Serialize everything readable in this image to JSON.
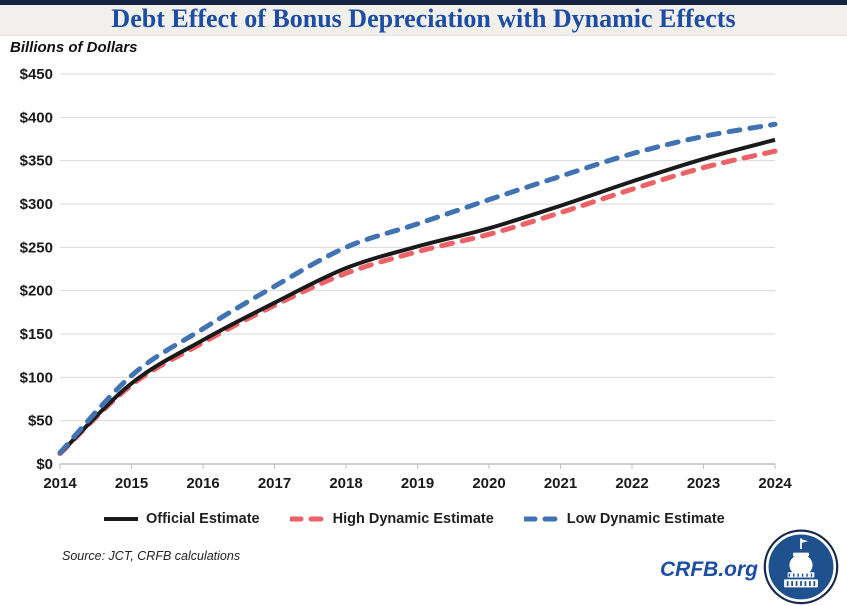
{
  "header": {
    "title": "Debt Effect of Bonus Depreciation with Dynamic Effects"
  },
  "chart_data": {
    "type": "line",
    "title": "Debt Effect of Bonus Depreciation with Dynamic Effects",
    "unit_label": "Billions of Dollars",
    "x": [
      2014,
      2015,
      2016,
      2017,
      2018,
      2019,
      2020,
      2021,
      2022,
      2023,
      2024
    ],
    "series": [
      {
        "name": "Official Estimate",
        "color": "#1a1a1a",
        "style": "solid",
        "values": [
          12,
          93,
          143,
          186,
          226,
          251,
          272,
          298,
          326,
          352,
          374
        ]
      },
      {
        "name": "High Dynamic Estimate",
        "color": "#ec6266",
        "style": "dashed",
        "values": [
          12,
          91,
          140,
          183,
          220,
          245,
          265,
          290,
          317,
          342,
          361
        ]
      },
      {
        "name": "Low Dynamic Estimate",
        "color": "#4173b3",
        "style": "dashed",
        "values": [
          13,
          102,
          156,
          205,
          250,
          277,
          305,
          332,
          358,
          378,
          392
        ]
      }
    ],
    "ylim": [
      0,
      450
    ],
    "y_tick_step": 50,
    "y_tick_labels": [
      "$450",
      "$400",
      "$350",
      "$300",
      "$250",
      "$200",
      "$150",
      "$100",
      "$50",
      "$0"
    ],
    "x_tick_labels": [
      "2014",
      "2015",
      "2016",
      "2017",
      "2018",
      "2019",
      "2020",
      "2021",
      "2022",
      "2023",
      "2024"
    ],
    "grid": true,
    "legend_position": "bottom"
  },
  "footer": {
    "source": "Source: JCT, CRFB calculations",
    "site": "CRFB.org"
  },
  "colors": {
    "title_blue": "#1d4da5",
    "top_bar_navy": "#15233f",
    "grid_gray": "#d9d9d9",
    "axis_gray": "#bfbfbf",
    "logo_navy": "#16294d",
    "logo_blue": "#1f518f"
  },
  "icons": {
    "logo": "capitol-dome-logo"
  }
}
